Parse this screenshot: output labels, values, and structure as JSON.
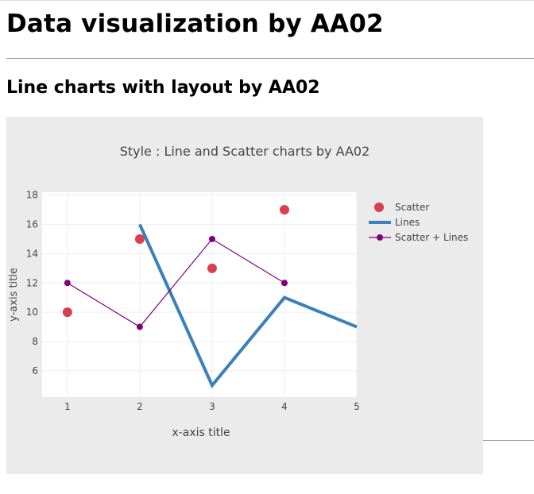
{
  "page": {
    "heading": "Data visualization by AA02",
    "subheading": "Line charts with layout by AA02"
  },
  "chart_data": {
    "type": "line",
    "title": "Style : Line and Scatter charts by AA02",
    "xlabel": "x-axis title",
    "ylabel": "y-axis title",
    "x_ticks": [
      1,
      2,
      3,
      4,
      5
    ],
    "y_ticks": [
      6,
      8,
      10,
      12,
      14,
      16,
      18
    ],
    "xlim": [
      0.65,
      5.0
    ],
    "ylim": [
      4.2,
      18.2
    ],
    "grid": true,
    "legend_position": "right",
    "series": [
      {
        "name": "Scatter",
        "mode": "markers",
        "color": "#d6404f",
        "x": [
          1,
          2,
          3,
          4
        ],
        "y": [
          10,
          15,
          13,
          17
        ]
      },
      {
        "name": "Lines",
        "mode": "lines",
        "color": "#3a80ba",
        "x": [
          2,
          3,
          4,
          5
        ],
        "y": [
          16,
          5,
          11,
          9
        ]
      },
      {
        "name": "Scatter + Lines",
        "mode": "lines+markers",
        "color": "#800080",
        "x": [
          1,
          2,
          3,
          4
        ],
        "y": [
          12,
          9,
          15,
          12
        ]
      }
    ]
  }
}
